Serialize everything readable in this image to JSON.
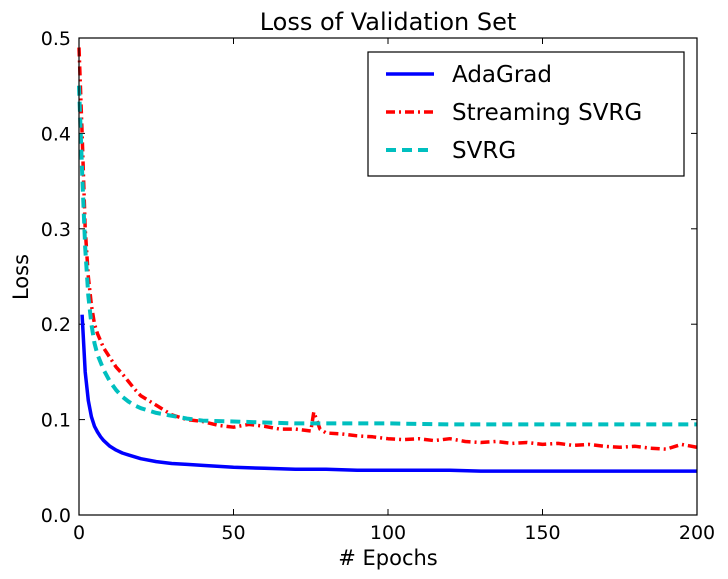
{
  "chart_data": {
    "type": "line",
    "title": "Loss of Validation Set",
    "xlabel": "# Epochs",
    "ylabel": "Loss",
    "xlim": [
      0,
      200
    ],
    "ylim": [
      0.0,
      0.5
    ],
    "xticks": [
      0,
      50,
      100,
      150,
      200
    ],
    "xtick_labels": [
      "0",
      "50",
      "100",
      "150",
      "200"
    ],
    "yticks": [
      0.0,
      0.1,
      0.2,
      0.3,
      0.4,
      0.5
    ],
    "ytick_labels": [
      "0.0",
      "0.1",
      "0.2",
      "0.3",
      "0.4",
      "0.5"
    ],
    "grid": false,
    "legend_position": "top-right",
    "series": [
      {
        "name": "AdaGrad",
        "color": "#0000ff",
        "style": "solid",
        "x": [
          1,
          2,
          3,
          4,
          5,
          6,
          7,
          8,
          10,
          12,
          14,
          16,
          18,
          20,
          25,
          30,
          35,
          40,
          50,
          60,
          70,
          80,
          90,
          100,
          110,
          120,
          130,
          140,
          150,
          160,
          170,
          180,
          190,
          200
        ],
        "y": [
          0.21,
          0.15,
          0.12,
          0.103,
          0.093,
          0.087,
          0.082,
          0.078,
          0.072,
          0.068,
          0.065,
          0.063,
          0.061,
          0.059,
          0.056,
          0.054,
          0.053,
          0.052,
          0.05,
          0.049,
          0.048,
          0.048,
          0.047,
          0.047,
          0.047,
          0.047,
          0.046,
          0.046,
          0.046,
          0.046,
          0.046,
          0.046,
          0.046,
          0.046
        ]
      },
      {
        "name": "Streaming SVRG",
        "color": "#ff0000",
        "style": "dashdot",
        "x": [
          0,
          1,
          2,
          3,
          4,
          5,
          6,
          8,
          10,
          12,
          14,
          16,
          18,
          20,
          25,
          30,
          35,
          40,
          45,
          50,
          55,
          60,
          65,
          70,
          75,
          76,
          78,
          80,
          85,
          90,
          95,
          100,
          105,
          110,
          115,
          120,
          125,
          130,
          135,
          140,
          145,
          150,
          155,
          160,
          165,
          170,
          175,
          180,
          185,
          190,
          195,
          200
        ],
        "y": [
          0.49,
          0.4,
          0.3,
          0.25,
          0.22,
          0.2,
          0.19,
          0.175,
          0.165,
          0.155,
          0.148,
          0.14,
          0.132,
          0.125,
          0.115,
          0.105,
          0.1,
          0.098,
          0.094,
          0.092,
          0.095,
          0.093,
          0.09,
          0.09,
          0.088,
          0.108,
          0.09,
          0.086,
          0.085,
          0.083,
          0.082,
          0.08,
          0.079,
          0.08,
          0.078,
          0.08,
          0.077,
          0.076,
          0.077,
          0.075,
          0.076,
          0.074,
          0.075,
          0.073,
          0.074,
          0.072,
          0.071,
          0.072,
          0.07,
          0.069,
          0.074,
          0.071
        ]
      },
      {
        "name": "SVRG",
        "color": "#00bfbf",
        "style": "dashed",
        "x": [
          0,
          1,
          2,
          3,
          4,
          5,
          6,
          8,
          10,
          12,
          14,
          16,
          18,
          20,
          25,
          30,
          35,
          40,
          50,
          60,
          70,
          80,
          90,
          100,
          120,
          140,
          160,
          180,
          200
        ],
        "y": [
          0.45,
          0.36,
          0.28,
          0.23,
          0.2,
          0.18,
          0.168,
          0.152,
          0.14,
          0.131,
          0.124,
          0.119,
          0.115,
          0.112,
          0.107,
          0.104,
          0.101,
          0.099,
          0.098,
          0.097,
          0.096,
          0.096,
          0.096,
          0.096,
          0.095,
          0.095,
          0.095,
          0.095,
          0.095
        ]
      }
    ]
  }
}
